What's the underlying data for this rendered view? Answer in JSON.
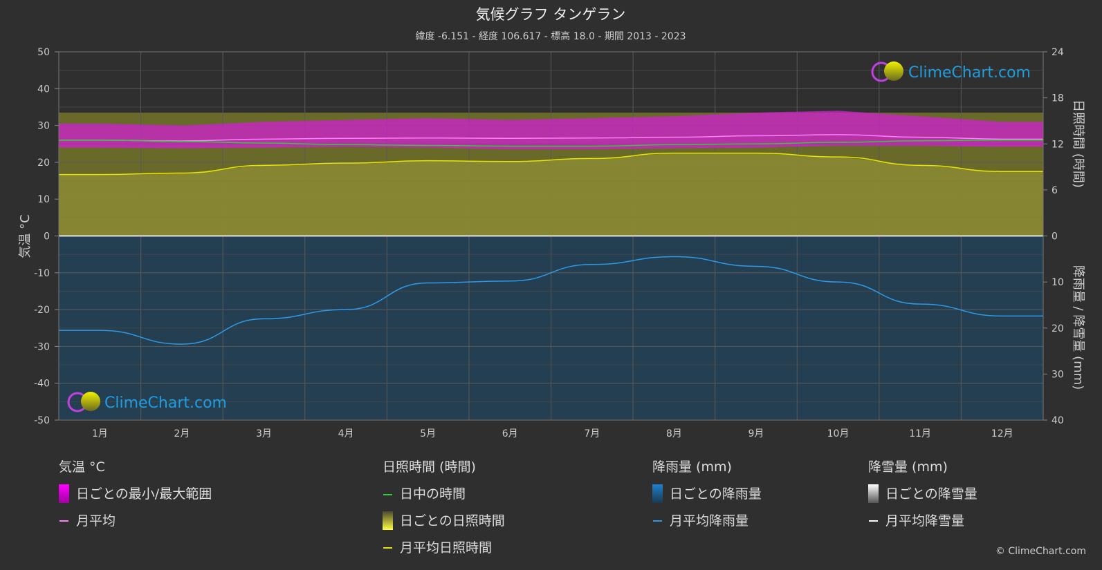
{
  "title": "気候グラフ タンゲラン",
  "subtitle": "緯度 -6.151 - 経度 106.617 - 標高 18.0 - 期間 2013 - 2023",
  "logo_text": "ClimeChart.com",
  "copyright": "© ClimeChart.com",
  "colors": {
    "background": "#2f2f2f",
    "temp_range": "#d020d0",
    "temp_mean": "#ff80ff",
    "daylight": "#33cc33",
    "sunshine_fill": "#8a8a30",
    "sunshine_mean": "#e6e600",
    "rain_fill": "#1f5f8f",
    "rain_mean": "#2e9ae6",
    "snow_mean": "#ffffff"
  },
  "chart_data": {
    "type": "line",
    "categories": [
      "1月",
      "2月",
      "3月",
      "4月",
      "5月",
      "6月",
      "7月",
      "8月",
      "9月",
      "10月",
      "11月",
      "12月"
    ],
    "y_left": {
      "label": "気温 °C",
      "ticks": [
        "50",
        "40",
        "30",
        "20",
        "10",
        "0",
        "-10",
        "-20",
        "-30",
        "-40",
        "-50"
      ],
      "range": [
        -50,
        50
      ]
    },
    "y_right_top": {
      "label": "日照時間 (時間)",
      "ticks": [
        "24",
        "18",
        "12",
        "6",
        "0"
      ],
      "range": [
        0,
        24
      ]
    },
    "y_right_bottom": {
      "label": "降雨量 / 降雪量 (mm)",
      "ticks": [
        "0",
        "10",
        "20",
        "30",
        "40"
      ],
      "range": [
        0,
        40
      ]
    },
    "grid": true,
    "series": [
      {
        "name": "月平均",
        "unit": "°C",
        "values": [
          26.0,
          25.8,
          26.3,
          26.5,
          26.6,
          26.5,
          26.6,
          26.8,
          27.2,
          27.5,
          26.8,
          26.3
        ]
      },
      {
        "name": "日ごとの最小/最大範囲",
        "unit": "°C",
        "min": [
          24.0,
          23.8,
          24.0,
          24.2,
          24.0,
          23.5,
          23.5,
          23.8,
          24.0,
          24.5,
          24.5,
          24.2
        ],
        "max": [
          30.5,
          30.0,
          31.0,
          31.5,
          32.0,
          31.5,
          32.0,
          32.5,
          33.5,
          34.0,
          32.5,
          31.0
        ]
      },
      {
        "name": "日中の時間",
        "unit": "時間",
        "values": [
          12.5,
          12.3,
          12.1,
          11.9,
          11.8,
          11.7,
          11.7,
          11.9,
          12.0,
          12.2,
          12.4,
          12.5
        ]
      },
      {
        "name": "月平均日照時間",
        "unit": "時間",
        "values": [
          8.0,
          8.2,
          9.2,
          9.5,
          9.8,
          9.7,
          10.1,
          10.8,
          10.8,
          10.3,
          9.2,
          8.4
        ]
      },
      {
        "name": "月平均降雨量",
        "unit": "mm",
        "values": [
          20.5,
          23.5,
          18.0,
          16.0,
          10.2,
          9.8,
          6.2,
          4.5,
          6.6,
          10.0,
          14.8,
          17.4
        ]
      },
      {
        "name": "月平均降雪量",
        "unit": "mm",
        "values": [
          0,
          0,
          0,
          0,
          0,
          0,
          0,
          0,
          0,
          0,
          0,
          0
        ]
      }
    ]
  },
  "legend": {
    "temp": {
      "heading": "気温 °C",
      "items": [
        "日ごとの最小/最大範囲",
        "月平均"
      ]
    },
    "sun": {
      "heading": "日照時間 (時間)",
      "items": [
        "日中の時間",
        "日ごとの日照時間",
        "月平均日照時間"
      ]
    },
    "rain": {
      "heading": "降雨量 (mm)",
      "items": [
        "日ごとの降雨量",
        "月平均降雨量"
      ]
    },
    "snow": {
      "heading": "降雪量 (mm)",
      "items": [
        "日ごとの降雪量",
        "月平均降雪量"
      ]
    }
  }
}
